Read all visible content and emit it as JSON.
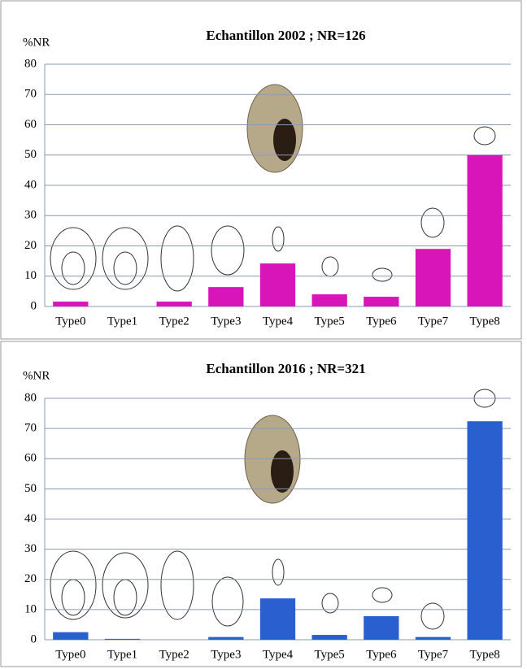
{
  "chart_data": [
    {
      "type": "bar",
      "title": "Echantillon 2002 ; NR=126",
      "ylabel": "%NR",
      "categories": [
        "Type0",
        "Type1",
        "Type2",
        "Type3",
        "Type4",
        "Type5",
        "Type6",
        "Type7",
        "Type8"
      ],
      "values": [
        1.6,
        0,
        1.6,
        6.4,
        14.2,
        4.0,
        3.2,
        19.0,
        50
      ],
      "color": "#d815b8",
      "ylim": [
        0,
        80
      ],
      "yticks": [
        0,
        10,
        20,
        30,
        40,
        50,
        60,
        70,
        80
      ],
      "grid": true
    },
    {
      "type": "bar",
      "title": "Echantillon 2016 ; NR=321",
      "ylabel": "%NR",
      "categories": [
        "Type0",
        "Type1",
        "Type2",
        "Type3",
        "Type4",
        "Type5",
        "Type6",
        "Type7",
        "Type8"
      ],
      "values": [
        2.5,
        0.3,
        0,
        0.9,
        13.7,
        1.6,
        7.8,
        0.9,
        72.4
      ],
      "color": "#2a5fd0",
      "ylim": [
        0,
        80
      ],
      "yticks": [
        0,
        10,
        20,
        30,
        40,
        50,
        60,
        70,
        80
      ],
      "grid": true
    }
  ]
}
